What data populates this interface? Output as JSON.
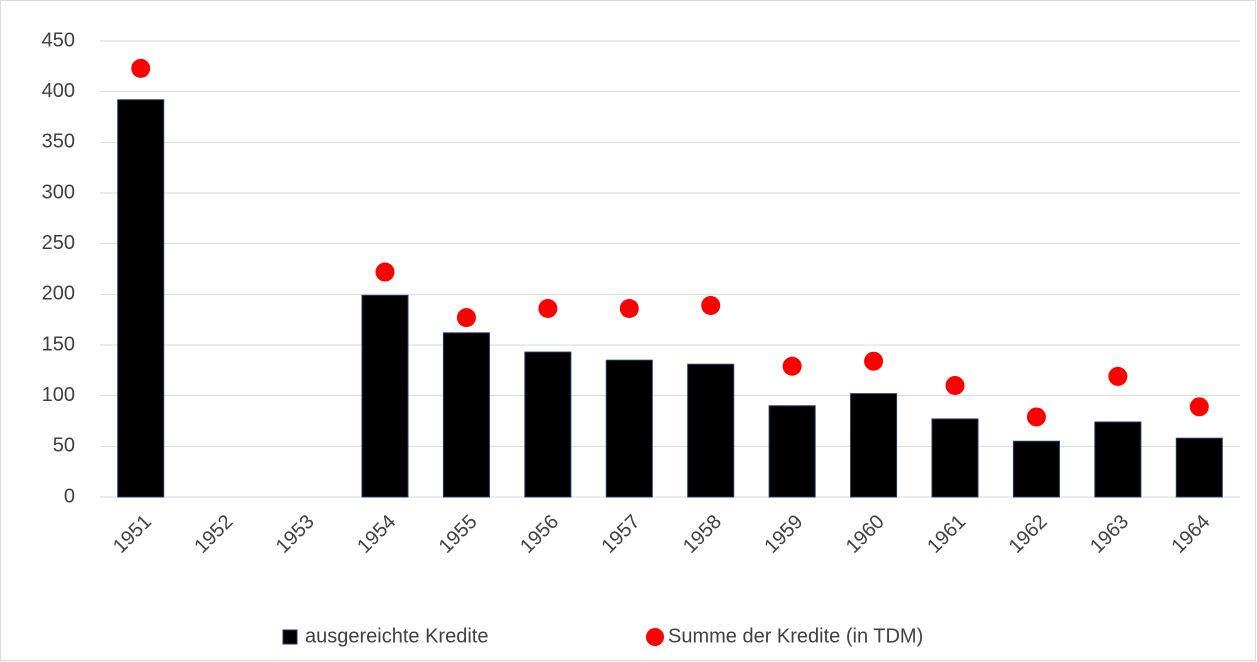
{
  "chart_data": {
    "type": "bar",
    "categories": [
      "1951",
      "1952",
      "1953",
      "1954",
      "1955",
      "1956",
      "1957",
      "1958",
      "1959",
      "1960",
      "1961",
      "1962",
      "1963",
      "1964"
    ],
    "series": [
      {
        "name": "ausgereichte Kredite",
        "type": "bar",
        "color": "#000000",
        "values": [
          392,
          null,
          null,
          199,
          162,
          143,
          135,
          131,
          90,
          102,
          77,
          55,
          74,
          58
        ]
      },
      {
        "name": "Summe der Kredite (in TDM)",
        "type": "scatter",
        "color": "#ff0000",
        "values": [
          423,
          null,
          null,
          222,
          177,
          186,
          186,
          189,
          129,
          134,
          110,
          79,
          119,
          89
        ]
      }
    ],
    "ylim": [
      0,
      450
    ],
    "yticks": [
      0,
      50,
      100,
      150,
      200,
      250,
      300,
      350,
      400,
      450
    ],
    "grid": true,
    "legend": "bottom"
  }
}
